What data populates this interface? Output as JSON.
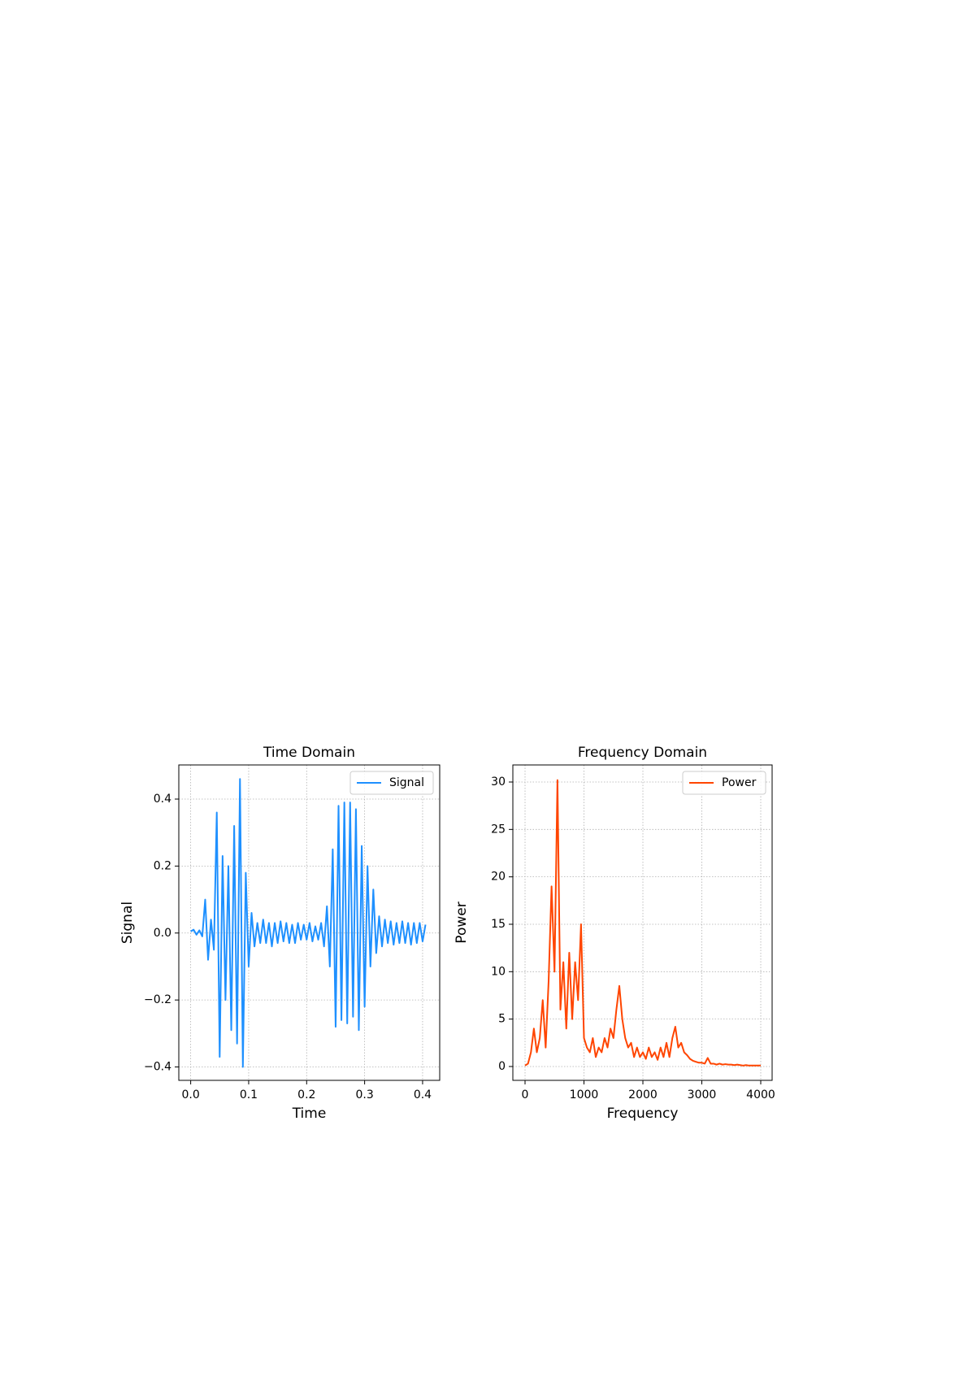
{
  "chart_data": [
    {
      "type": "line",
      "title": "Time Domain",
      "xlabel": "Time",
      "ylabel": "Signal",
      "x": [
        0,
        0.005,
        0.01,
        0.015,
        0.02,
        0.025,
        0.03,
        0.035,
        0.04,
        0.045,
        0.05,
        0.055,
        0.06,
        0.065,
        0.07,
        0.075,
        0.08,
        0.085,
        0.09,
        0.095,
        0.1,
        0.105,
        0.11,
        0.115,
        0.12,
        0.125,
        0.13,
        0.135,
        0.14,
        0.145,
        0.15,
        0.155,
        0.16,
        0.165,
        0.17,
        0.175,
        0.18,
        0.185,
        0.19,
        0.195,
        0.2,
        0.205,
        0.21,
        0.215,
        0.22,
        0.225,
        0.23,
        0.235,
        0.24,
        0.245,
        0.25,
        0.255,
        0.26,
        0.265,
        0.27,
        0.275,
        0.28,
        0.285,
        0.29,
        0.295,
        0.3,
        0.305,
        0.31,
        0.315,
        0.32,
        0.325,
        0.33,
        0.335,
        0.34,
        0.345,
        0.35,
        0.355,
        0.36,
        0.365,
        0.37,
        0.375,
        0.38,
        0.385,
        0.39,
        0.395,
        0.4,
        0.405
      ],
      "series": [
        {
          "name": "Signal",
          "color": "#1e90ff",
          "values": [
            0.005,
            0.01,
            -0.005,
            0.008,
            -0.01,
            0.1,
            -0.08,
            0.04,
            -0.05,
            0.36,
            -0.37,
            0.23,
            -0.2,
            0.2,
            -0.29,
            0.32,
            -0.33,
            0.46,
            -0.4,
            0.18,
            -0.1,
            0.06,
            -0.04,
            0.03,
            -0.03,
            0.04,
            -0.03,
            0.03,
            -0.04,
            0.03,
            -0.03,
            0.035,
            -0.025,
            0.03,
            -0.03,
            0.025,
            -0.03,
            0.03,
            -0.02,
            0.025,
            -0.02,
            0.03,
            -0.025,
            0.02,
            -0.02,
            0.03,
            -0.04,
            0.08,
            -0.1,
            0.25,
            -0.28,
            0.38,
            -0.26,
            0.39,
            -0.27,
            0.39,
            -0.25,
            0.37,
            -0.29,
            0.26,
            -0.22,
            0.2,
            -0.1,
            0.13,
            -0.06,
            0.05,
            -0.04,
            0.04,
            -0.03,
            0.035,
            -0.035,
            0.03,
            -0.03,
            0.035,
            -0.03,
            0.03,
            -0.035,
            0.03,
            -0.03,
            0.03,
            -0.025,
            0.025
          ]
        }
      ],
      "xlim": [
        -0.0205,
        0.4295
      ],
      "ylim": [
        -0.44,
        0.502
      ],
      "xticks": [
        {
          "value": 0,
          "label": "0.0"
        },
        0.1,
        0.2,
        0.3,
        0.4
      ],
      "yticks": [
        {
          "value": -0.4,
          "label": "−0.4"
        },
        {
          "value": -0.2,
          "label": "−0.2"
        },
        {
          "value": 0,
          "label": "0.0"
        },
        0.2,
        0.4
      ],
      "grid": true,
      "legend": "upper right"
    },
    {
      "type": "line",
      "title": "Frequency Domain",
      "xlabel": "Frequency",
      "ylabel": "Power",
      "x": [
        0,
        50,
        100,
        150,
        200,
        250,
        300,
        350,
        400,
        450,
        500,
        550,
        600,
        650,
        700,
        750,
        800,
        850,
        900,
        950,
        1000,
        1050,
        1100,
        1150,
        1200,
        1250,
        1300,
        1350,
        1400,
        1450,
        1500,
        1550,
        1600,
        1650,
        1700,
        1750,
        1800,
        1850,
        1900,
        1950,
        2000,
        2050,
        2100,
        2150,
        2200,
        2250,
        2300,
        2350,
        2400,
        2450,
        2500,
        2550,
        2600,
        2650,
        2700,
        2750,
        2800,
        2850,
        2900,
        2950,
        3000,
        3050,
        3100,
        3150,
        3200,
        3250,
        3300,
        3350,
        3400,
        3450,
        3500,
        3550,
        3600,
        3650,
        3700,
        3750,
        3800,
        3850,
        3900,
        3950,
        4000
      ],
      "series": [
        {
          "name": "Power",
          "color": "#ff4500",
          "values": [
            0.1,
            0.3,
            1.5,
            4,
            1.5,
            3,
            7,
            2,
            9,
            19,
            10,
            30.2,
            6,
            11,
            4,
            12,
            5,
            11,
            7,
            15,
            3,
            2,
            1.5,
            3,
            1,
            2,
            1.5,
            3,
            2,
            4,
            3,
            6,
            8.5,
            5,
            3,
            2,
            2.5,
            1,
            2,
            1,
            1.5,
            0.8,
            2,
            1,
            1.5,
            0.7,
            2,
            1,
            2.5,
            1,
            3,
            4.2,
            2,
            2.5,
            1.5,
            1.2,
            0.8,
            0.6,
            0.5,
            0.4,
            0.4,
            0.3,
            0.9,
            0.3,
            0.3,
            0.2,
            0.3,
            0.2,
            0.25,
            0.2,
            0.2,
            0.15,
            0.2,
            0.15,
            0.1,
            0.15,
            0.1,
            0.1,
            0.1,
            0.1,
            0.1
          ]
        }
      ],
      "xlim": [
        -207,
        4193
      ],
      "ylim": [
        -1.46,
        31.8
      ],
      "xticks": [
        0,
        1000,
        2000,
        3000,
        4000
      ],
      "yticks": [
        0,
        5,
        10,
        15,
        20,
        25,
        30
      ],
      "grid": true,
      "legend": "upper right"
    }
  ]
}
